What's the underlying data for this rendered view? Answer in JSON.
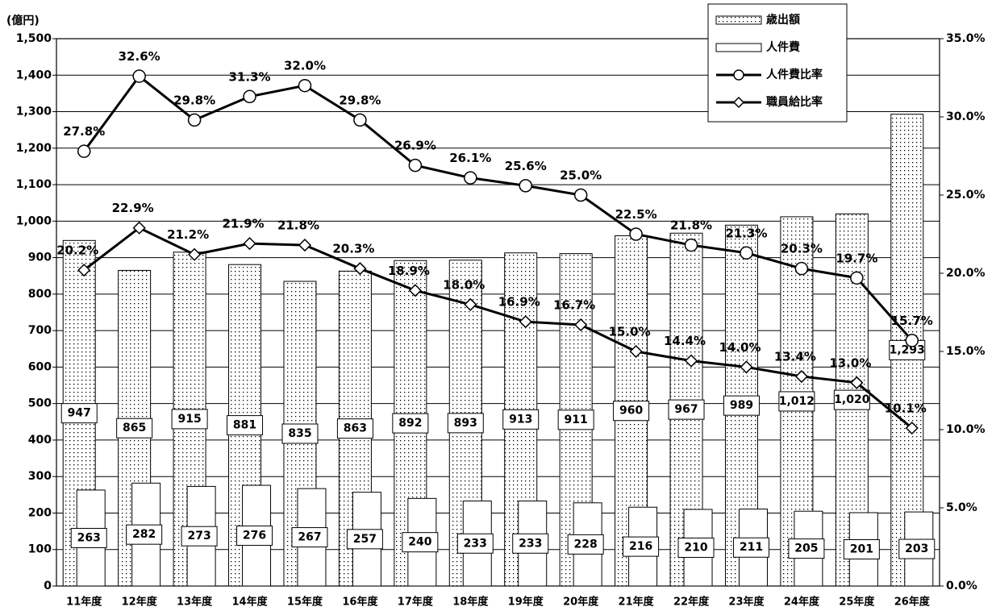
{
  "chart_data": {
    "type": "bar-line",
    "y_label": "(億円)",
    "categories": [
      "11年度",
      "12年度",
      "13年度",
      "14年度",
      "15年度",
      "16年度",
      "17年度",
      "18年度",
      "19年度",
      "20年度",
      "21年度",
      "22年度",
      "23年度",
      "24年度",
      "25年度",
      "26年度"
    ],
    "series": [
      {
        "name": "歳出額",
        "type": "bar",
        "color": "#000000",
        "pattern": "dots",
        "values": [
          947,
          865,
          915,
          881,
          835,
          863,
          892,
          893,
          913,
          911,
          960,
          967,
          989,
          1012,
          1020,
          1293
        ],
        "value_labels": [
          "947",
          "865",
          "915",
          "881",
          "835",
          "863",
          "892",
          "893",
          "913",
          "911",
          "960",
          "967",
          "989",
          "1,012",
          "1,020",
          "1,293"
        ]
      },
      {
        "name": "人件費",
        "type": "bar",
        "color": "#ffffff",
        "values": [
          263,
          282,
          273,
          276,
          267,
          257,
          240,
          233,
          233,
          228,
          216,
          210,
          211,
          205,
          201,
          203
        ]
      },
      {
        "name": "人件費比率",
        "type": "line",
        "axis": "y2",
        "color": "#000000",
        "marker": "circle",
        "values": [
          27.8,
          32.6,
          29.8,
          31.3,
          32.0,
          29.8,
          26.9,
          26.1,
          25.6,
          25.0,
          22.5,
          21.8,
          21.3,
          20.3,
          19.7,
          15.7
        ],
        "value_labels": [
          "27.8%",
          "32.6%",
          "29.8%",
          "31.3%",
          "32.0%",
          "29.8%",
          "26.9%",
          "26.1%",
          "25.6%",
          "25.0%",
          "22.5%",
          "21.8%",
          "21.3%",
          "20.3%",
          "19.7%",
          "15.7%"
        ]
      },
      {
        "name": "職員給比率",
        "type": "line",
        "axis": "y2",
        "color": "#000000",
        "marker": "diamond",
        "values": [
          20.2,
          22.9,
          21.2,
          21.9,
          21.8,
          20.3,
          18.9,
          18.0,
          16.9,
          16.7,
          15.0,
          14.4,
          14.0,
          13.4,
          13.0,
          10.1
        ],
        "value_labels": [
          "20.2%",
          "22.9%",
          "21.2%",
          "21.9%",
          "21.8%",
          "20.3%",
          "18.9%",
          "18.0%",
          "16.9%",
          "16.7%",
          "15.0%",
          "14.4%",
          "14.0%",
          "13.4%",
          "13.0%",
          "10.1%"
        ]
      }
    ],
    "ylim": [
      0,
      1500
    ],
    "yticks": [
      0,
      100,
      200,
      300,
      400,
      500,
      600,
      700,
      800,
      900,
      {
        "value": 1000,
        "label": "1,000"
      },
      {
        "value": 1100,
        "label": "1,100"
      },
      {
        "value": 1200,
        "label": "1,200"
      },
      {
        "value": 1300,
        "label": "1,300"
      },
      {
        "value": 1400,
        "label": "1,400"
      },
      {
        "value": 1500,
        "label": "1,500"
      }
    ],
    "y2lim": [
      0,
      35
    ],
    "y2ticks": [
      {
        "value": 0,
        "label": "0.0%"
      },
      {
        "value": 5,
        "label": "5.0%"
      },
      {
        "value": 10,
        "label": "10.0%"
      },
      {
        "value": 15,
        "label": "15.0%"
      },
      {
        "value": 20,
        "label": "20.0%"
      },
      {
        "value": 25,
        "label": "25.0%"
      },
      {
        "value": 30,
        "label": "30.0%"
      },
      {
        "value": 35,
        "label": "35.0%"
      }
    ],
    "grid": true,
    "legend": "top-right"
  }
}
